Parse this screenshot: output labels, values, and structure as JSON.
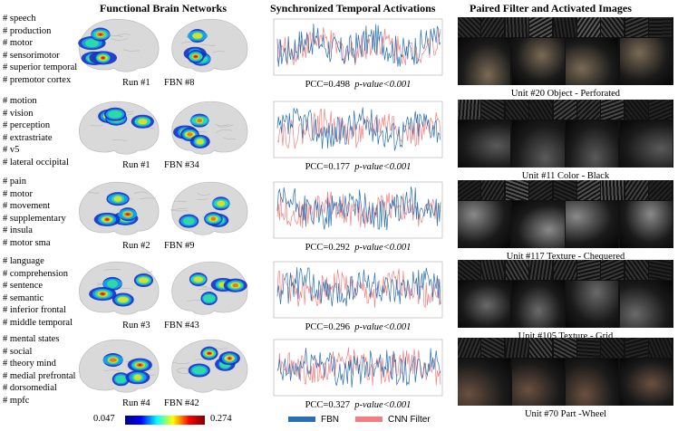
{
  "titles": {
    "networks": "Functional Brain Networks",
    "temporal": "Synchronized Temporal Activations",
    "filters": "Paired Filter and Activated Images"
  },
  "rows": [
    {
      "terms": [
        "# speech",
        "# production",
        "# motor",
        "# sensorimotor",
        "# superior temporal",
        "# premotor cortex"
      ],
      "run": "Run #1",
      "fbn": "FBN #8",
      "pcc": "PCC=0.498",
      "pvalue": "p-value<0.001",
      "unit": "Unit #20  Object - Perforated",
      "seed": 3,
      "swatch": "#7a6a55"
    },
    {
      "terms": [
        "# motion",
        "# vision",
        "# perception",
        "# extrastriate",
        "# v5",
        "# lateral occipital"
      ],
      "run": "Run #1",
      "fbn": "FBN #34",
      "pcc": "PCC=0.177",
      "pvalue": "p-value<0.001",
      "unit": "Unit #11  Color - Black",
      "seed": 7,
      "swatch": "#5a5a5a"
    },
    {
      "terms": [
        "# pain",
        "# motor",
        "# movement",
        "# supplementary",
        "# insula",
        "# motor sma"
      ],
      "run": "Run #2",
      "fbn": "FBN #9",
      "pcc": "PCC=0.292",
      "pvalue": "p-value<0.001",
      "unit": "Unit #117  Texture - Chequered",
      "seed": 11,
      "swatch": "#8a8a8a"
    },
    {
      "terms": [
        "# language",
        "# comprehension",
        "# sentence",
        "# semantic",
        "# inferior frontal",
        "# middle temporal"
      ],
      "run": "Run #3",
      "fbn": "FBN #43",
      "pcc": "PCC=0.296",
      "pvalue": "p-value<0.001",
      "unit": "Unit #105 Texture - Grid",
      "seed": 17,
      "swatch": "#6a6a6a"
    },
    {
      "terms": [
        "# mental states",
        "# social",
        "# theory mind",
        "# medial prefrontal",
        "# dorsomedial",
        "# mpfc"
      ],
      "run": "Run #4",
      "fbn": "FBN #42",
      "pcc": "PCC=0.327",
      "pvalue": "p-value<0.001",
      "unit": "Unit #70  Part -Wheel",
      "seed": 23,
      "swatch": "#6a5040"
    }
  ],
  "colorbar": {
    "min": "0.047",
    "max": "0.274"
  },
  "legend": {
    "fbn": {
      "label": "FBN",
      "color": "#2a6fb0"
    },
    "cnn": {
      "label": "CNN Filter",
      "color": "#f08080"
    }
  }
}
